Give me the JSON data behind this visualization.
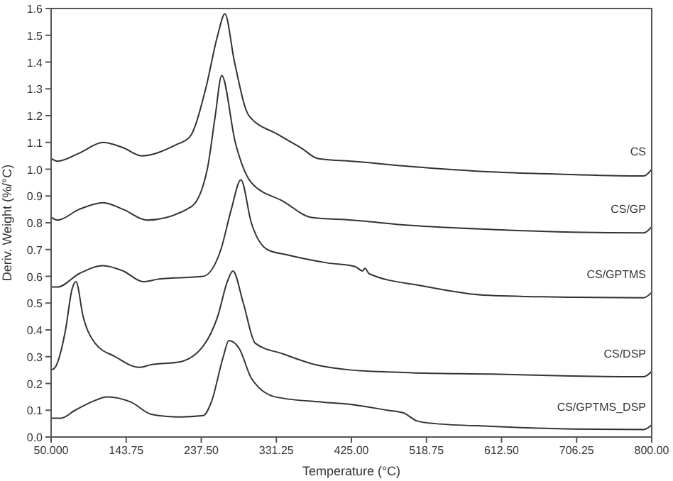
{
  "chart_data": {
    "type": "line",
    "xlabel": "Temperature (°C)",
    "ylabel": "Deriv. Weight (%/°C)",
    "xlim": [
      50,
      800
    ],
    "ylim": [
      0,
      1.6
    ],
    "xticks": [
      {
        "value": 50,
        "label": "50.000"
      },
      {
        "value": 143.75,
        "label": "143.75"
      },
      {
        "value": 237.5,
        "label": "237.50"
      },
      {
        "value": 331.25,
        "label": "331.25"
      },
      {
        "value": 425,
        "label": "425.00"
      },
      {
        "value": 518.75,
        "label": "518.75"
      },
      {
        "value": 612.5,
        "label": "612.50"
      },
      {
        "value": 706.25,
        "label": "706.25"
      },
      {
        "value": 800,
        "label": "800.00"
      }
    ],
    "yticks": [
      {
        "value": 0,
        "label": "0.0"
      },
      {
        "value": 0.1,
        "label": "0.1"
      },
      {
        "value": 0.2,
        "label": "0.2"
      },
      {
        "value": 0.3,
        "label": "0.3"
      },
      {
        "value": 0.4,
        "label": "0.4"
      },
      {
        "value": 0.5,
        "label": "0.5"
      },
      {
        "value": 0.6,
        "label": "0.6"
      },
      {
        "value": 0.7,
        "label": "0.7"
      },
      {
        "value": 0.8,
        "label": "0.8"
      },
      {
        "value": 0.9,
        "label": "0.9"
      },
      {
        "value": 1.0,
        "label": "1.0"
      },
      {
        "value": 1.1,
        "label": "1.1"
      },
      {
        "value": 1.2,
        "label": "1.2"
      },
      {
        "value": 1.3,
        "label": "1.3"
      },
      {
        "value": 1.4,
        "label": "1.4"
      },
      {
        "value": 1.5,
        "label": "1.5"
      },
      {
        "value": 1.6,
        "label": "1.6"
      }
    ],
    "grid": false,
    "legend": false,
    "marker": "none",
    "line_style": "solid",
    "series": [
      {
        "name": "CS",
        "color": "#333333",
        "x": [
          50,
          58,
          85,
          115,
          140,
          163,
          205,
          223,
          243,
          258,
          267,
          279,
          297,
          333,
          362,
          383,
          425,
          500,
          600,
          700,
          790,
          800
        ],
        "values": [
          1.04,
          1.03,
          1.06,
          1.1,
          1.08,
          1.05,
          1.09,
          1.12,
          1.3,
          1.5,
          1.58,
          1.4,
          1.2,
          1.13,
          1.08,
          1.04,
          1.03,
          1.01,
          0.99,
          0.98,
          0.975,
          1.0
        ]
      },
      {
        "name": "CS/GP",
        "color": "#333333",
        "x": [
          50,
          58,
          85,
          115,
          140,
          170,
          225,
          245,
          255,
          263,
          280,
          300,
          340,
          375,
          425,
          500,
          600,
          700,
          790,
          800
        ],
        "values": [
          0.82,
          0.81,
          0.85,
          0.875,
          0.85,
          0.81,
          0.86,
          1.0,
          1.2,
          1.35,
          1.1,
          0.95,
          0.88,
          0.82,
          0.81,
          0.79,
          0.775,
          0.765,
          0.762,
          0.785
        ]
      },
      {
        "name": "CS/GPTMS",
        "color": "#333333",
        "x": [
          50,
          58,
          85,
          115,
          140,
          165,
          185,
          240,
          262,
          275,
          287,
          300,
          320,
          345,
          395,
          430,
          439,
          442,
          447,
          514,
          590,
          700,
          790,
          800
        ],
        "values": [
          0.56,
          0.56,
          0.61,
          0.64,
          0.62,
          0.58,
          0.59,
          0.6,
          0.7,
          0.85,
          0.96,
          0.8,
          0.7,
          0.68,
          0.65,
          0.636,
          0.62,
          0.63,
          0.61,
          0.564,
          0.53,
          0.522,
          0.52,
          0.54
        ]
      },
      {
        "name": "CS/DSP",
        "color": "#333333",
        "x": [
          50,
          55,
          68,
          76,
          81,
          90,
          105,
          130,
          160,
          175,
          210,
          240,
          258,
          270,
          277,
          290,
          305,
          340,
          380,
          425,
          500,
          600,
          700,
          790,
          800
        ],
        "values": [
          0.25,
          0.26,
          0.4,
          0.55,
          0.58,
          0.45,
          0.35,
          0.3,
          0.26,
          0.27,
          0.28,
          0.34,
          0.45,
          0.58,
          0.62,
          0.5,
          0.35,
          0.31,
          0.27,
          0.25,
          0.24,
          0.235,
          0.228,
          0.225,
          0.245
        ]
      },
      {
        "name": "CS/GPTMS_DSP",
        "color": "#333333",
        "x": [
          50,
          62,
          80,
          100,
          120,
          150,
          175,
          210,
          240,
          250,
          265,
          272,
          285,
          300,
          330,
          390,
          420,
          470,
          490,
          507,
          530,
          600,
          700,
          790,
          800
        ],
        "values": [
          0.07,
          0.07,
          0.1,
          0.13,
          0.15,
          0.13,
          0.085,
          0.075,
          0.08,
          0.13,
          0.3,
          0.36,
          0.33,
          0.22,
          0.15,
          0.13,
          0.123,
          0.1,
          0.09,
          0.06,
          0.05,
          0.04,
          0.03,
          0.028,
          0.045
        ]
      }
    ]
  }
}
